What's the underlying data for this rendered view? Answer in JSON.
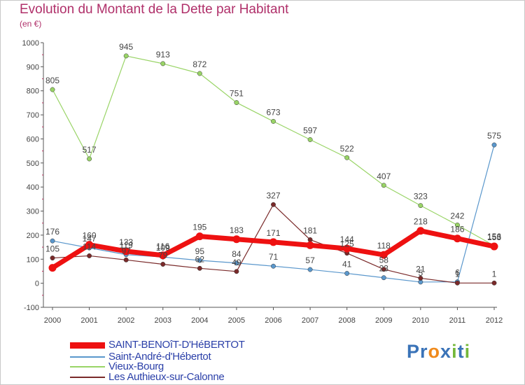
{
  "title": "Evolution du Montant de la Dette par Habitant",
  "unit": "(en €)",
  "brand": "Proxiti",
  "colors": {
    "title": "#b0306a",
    "axis": "#555555",
    "legend_text": "#2a3fa8",
    "brand_P": "#3a73b8",
    "brand_r": "#3a73b8",
    "brand_o": "#f08a1c",
    "brand_x": "#3a73b8",
    "brand_i": "#74b83a",
    "brand_t": "#3a73b8",
    "brand_i2": "#74b83a"
  },
  "chart_data": {
    "type": "line",
    "x": [
      2000,
      2001,
      2002,
      2003,
      2004,
      2005,
      2006,
      2007,
      2008,
      2009,
      2010,
      2011,
      2012
    ],
    "ylim": [
      -100,
      1000
    ],
    "yticks": [
      -100,
      0,
      100,
      200,
      300,
      400,
      500,
      600,
      700,
      800,
      900,
      1000
    ],
    "grid": false,
    "legend_position": "bottom-left",
    "series": [
      {
        "name": "SAINT-BENOîT-D'HéBERTOT",
        "color": "#ee1111",
        "width": 7,
        "values": [
          64,
          160,
          133,
          116,
          195,
          183,
          171,
          158,
          144,
          118,
          218,
          186,
          153
        ],
        "labels": [
          "",
          "160",
          "133",
          "116",
          "195",
          "183",
          "171",
          "",
          "144",
          "118",
          "218",
          "186",
          "153"
        ]
      },
      {
        "name": "Saint-André-d'Hébertot",
        "color": "#5a97cc",
        "width": 1.2,
        "values": [
          176,
          147,
          119,
          109,
          95,
          84,
          71,
          57,
          41,
          23,
          5,
          6,
          575
        ],
        "labels": [
          "176",
          "147",
          "119",
          "109",
          "95",
          "84",
          "71",
          "57",
          "41",
          "23",
          "5",
          "6",
          "575"
        ]
      },
      {
        "name": "Vieux-Bourg",
        "color": "#99d466",
        "width": 1.2,
        "values": [
          805,
          517,
          945,
          913,
          872,
          751,
          673,
          597,
          522,
          407,
          323,
          242,
          156
        ],
        "labels": [
          "805",
          "517",
          "945",
          "913",
          "872",
          "751",
          "673",
          "597",
          "522",
          "407",
          "323",
          "242",
          "156"
        ]
      },
      {
        "name": "Les Authieux-sur-Calonne",
        "color": "#7a2a2a",
        "width": 1.2,
        "values": [
          105,
          114,
          97,
          79,
          62,
          49,
          327,
          181,
          125,
          58,
          21,
          1,
          1
        ],
        "labels": [
          "105",
          "114",
          "97",
          "79",
          "62",
          "49",
          "327",
          "181",
          "125",
          "58",
          "21",
          "1",
          "1"
        ]
      }
    ]
  }
}
